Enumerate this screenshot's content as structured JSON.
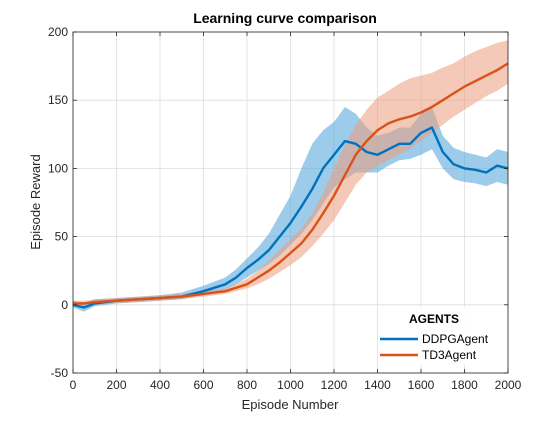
{
  "chart_data": {
    "type": "line",
    "title": "Learning curve comparison",
    "xlabel": "Episode Number",
    "ylabel": "Episode Reward",
    "xlim": [
      0,
      2000
    ],
    "ylim": [
      -50,
      200
    ],
    "xticks": [
      0,
      200,
      400,
      600,
      800,
      1000,
      1200,
      1400,
      1600,
      1800,
      2000
    ],
    "yticks": [
      -50,
      0,
      50,
      100,
      150,
      200
    ],
    "grid": true,
    "legend": {
      "title": "AGENTS",
      "placement": "bottom-right"
    },
    "series": [
      {
        "name": "DDPGAgent",
        "color": "#0072BD",
        "band_color": "#4DA3DB",
        "x": [
          0,
          50,
          100,
          200,
          300,
          400,
          500,
          600,
          700,
          750,
          800,
          850,
          900,
          950,
          1000,
          1050,
          1100,
          1150,
          1200,
          1250,
          1300,
          1350,
          1400,
          1450,
          1500,
          1550,
          1600,
          1650,
          1700,
          1750,
          1800,
          1850,
          1900,
          1950,
          2000
        ],
        "y": [
          0,
          -2,
          1,
          3,
          4,
          5,
          6,
          10,
          15,
          20,
          27,
          33,
          40,
          50,
          60,
          72,
          85,
          100,
          110,
          120,
          118,
          112,
          110,
          114,
          118,
          118,
          126,
          130,
          112,
          103,
          100,
          99,
          97,
          102,
          100
        ],
        "lower": [
          -2,
          -5,
          -1,
          1,
          2,
          3,
          4,
          7,
          11,
          15,
          20,
          25,
          30,
          36,
          44,
          52,
          62,
          74,
          86,
          92,
          97,
          97,
          97,
          102,
          106,
          107,
          110,
          114,
          100,
          92,
          90,
          89,
          87,
          90,
          88
        ],
        "upper": [
          3,
          1,
          4,
          5,
          6,
          7,
          9,
          14,
          20,
          26,
          34,
          42,
          52,
          66,
          80,
          100,
          118,
          128,
          134,
          145,
          140,
          130,
          124,
          126,
          130,
          130,
          140,
          145,
          124,
          115,
          112,
          110,
          108,
          114,
          112
        ]
      },
      {
        "name": "TD3Agent",
        "color": "#D95319",
        "band_color": "#EC9C7C",
        "x": [
          0,
          50,
          100,
          200,
          300,
          400,
          500,
          600,
          700,
          800,
          850,
          900,
          950,
          1000,
          1050,
          1100,
          1150,
          1200,
          1250,
          1300,
          1350,
          1400,
          1450,
          1500,
          1550,
          1600,
          1650,
          1700,
          1750,
          1800,
          1850,
          1900,
          1950,
          2000
        ],
        "y": [
          1,
          1,
          2,
          3,
          4,
          5,
          6,
          8,
          10,
          15,
          20,
          25,
          31,
          38,
          45,
          55,
          67,
          80,
          95,
          110,
          120,
          128,
          133,
          136,
          138,
          141,
          145,
          150,
          155,
          160,
          164,
          168,
          172,
          177
        ],
        "lower": [
          -1,
          -1,
          0,
          1,
          2,
          3,
          4,
          6,
          8,
          12,
          15,
          19,
          24,
          29,
          35,
          43,
          52,
          62,
          75,
          88,
          97,
          102,
          106,
          110,
          114,
          120,
          126,
          132,
          138,
          143,
          148,
          153,
          157,
          162
        ],
        "upper": [
          3,
          3,
          4,
          5,
          6,
          7,
          8,
          10,
          12,
          19,
          25,
          32,
          40,
          48,
          56,
          67,
          82,
          100,
          117,
          132,
          143,
          152,
          157,
          162,
          166,
          168,
          170,
          174,
          177,
          182,
          186,
          189,
          192,
          194
        ]
      }
    ]
  }
}
